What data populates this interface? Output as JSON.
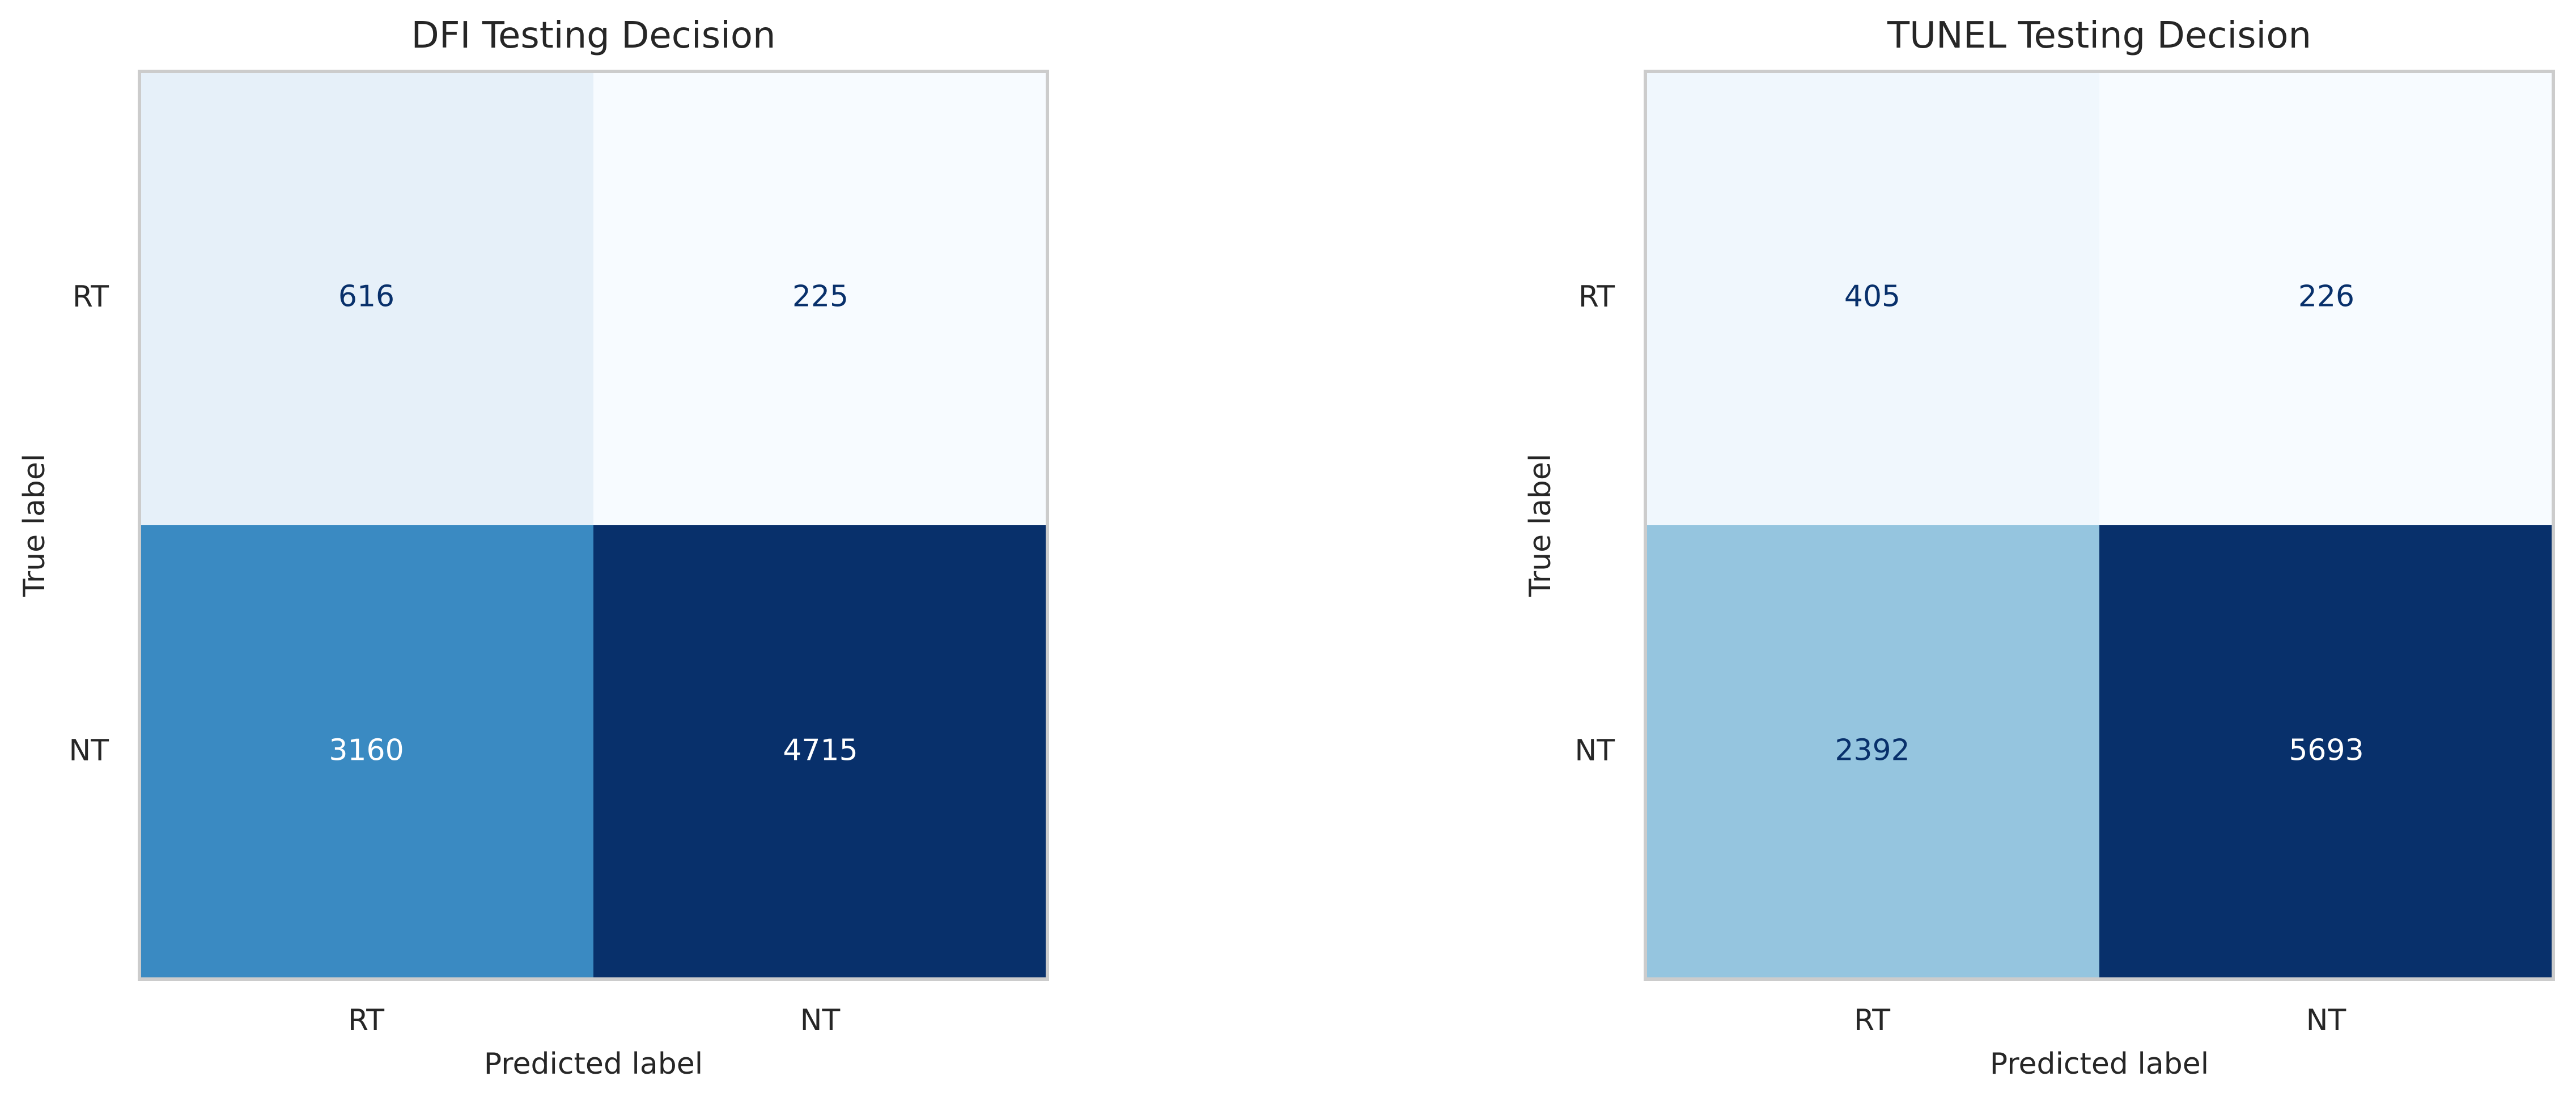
{
  "chart_data": [
    {
      "type": "heatmap",
      "title": "DFI Testing Decision",
      "xlabel": "Predicted label",
      "ylabel": "True label",
      "x_categories": [
        "RT",
        "NT"
      ],
      "y_categories": [
        "RT",
        "NT"
      ],
      "values": [
        [
          616,
          225
        ],
        [
          3160,
          4715
        ]
      ],
      "colormap": "Blues",
      "grid": false
    },
    {
      "type": "heatmap",
      "title": "TUNEL Testing Decision",
      "xlabel": "Predicted label",
      "ylabel": "True label",
      "x_categories": [
        "RT",
        "NT"
      ],
      "y_categories": [
        "RT",
        "NT"
      ],
      "values": [
        [
          405,
          226
        ],
        [
          2392,
          5693
        ]
      ],
      "colormap": "Blues",
      "grid": false
    }
  ]
}
